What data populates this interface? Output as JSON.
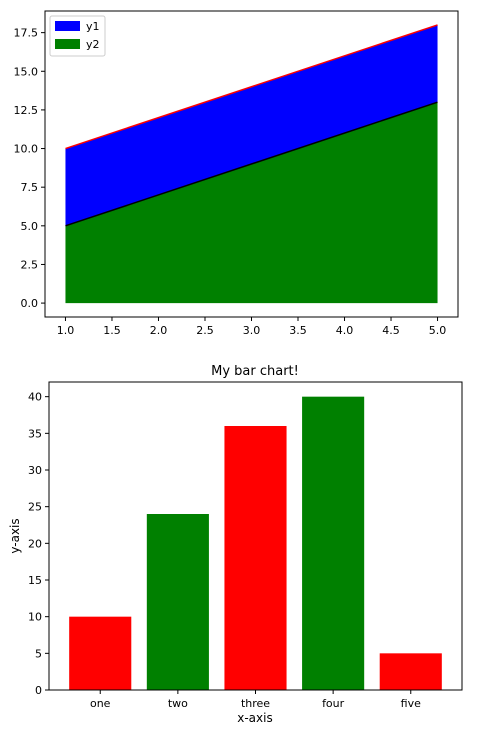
{
  "chart_data": [
    {
      "type": "area",
      "x": [
        1.0,
        5.0
      ],
      "series": [
        {
          "name": "y1",
          "lower": [
            5.0,
            13.0
          ],
          "upper": [
            10.0,
            18.0
          ],
          "values": [
            10.0,
            18.0
          ],
          "color": "#0000ff",
          "edge_color": "#ff0000"
        },
        {
          "name": "y2",
          "lower": [
            0.0,
            0.0
          ],
          "upper": [
            5.0,
            13.0
          ],
          "values": [
            5.0,
            13.0
          ],
          "color": "#008000",
          "edge_color": "#000000"
        }
      ],
      "xlim": [
        0.78,
        5.22
      ],
      "ylim": [
        -0.9,
        18.9
      ],
      "xticks": [
        "1.0",
        "1.5",
        "2.0",
        "2.5",
        "3.0",
        "3.5",
        "4.0",
        "4.5",
        "5.0"
      ],
      "xtick_values": [
        1.0,
        1.5,
        2.0,
        2.5,
        3.0,
        3.5,
        4.0,
        4.5,
        5.0
      ],
      "yticks": [
        "0.0",
        "2.5",
        "5.0",
        "7.5",
        "10.0",
        "12.5",
        "15.0",
        "17.5"
      ],
      "ytick_values": [
        0.0,
        2.5,
        5.0,
        7.5,
        10.0,
        12.5,
        15.0,
        17.5
      ],
      "legend": "top-left",
      "grid": false,
      "title": "",
      "xlabel": "",
      "ylabel": ""
    },
    {
      "type": "bar",
      "title": "My bar chart!",
      "xlabel": "x-axis",
      "ylabel": "y-axis",
      "categories": [
        "one",
        "two",
        "three",
        "four",
        "five"
      ],
      "values": [
        10,
        24,
        36,
        40,
        5
      ],
      "colors": [
        "#ff0000",
        "#008000",
        "#ff0000",
        "#008000",
        "#ff0000"
      ],
      "ylim": [
        0,
        42
      ],
      "yticks": [
        "0",
        "5",
        "10",
        "15",
        "20",
        "25",
        "30",
        "35",
        "40"
      ],
      "ytick_values": [
        0,
        5,
        10,
        15,
        20,
        25,
        30,
        35,
        40
      ],
      "legend": "none",
      "grid": false
    }
  ]
}
